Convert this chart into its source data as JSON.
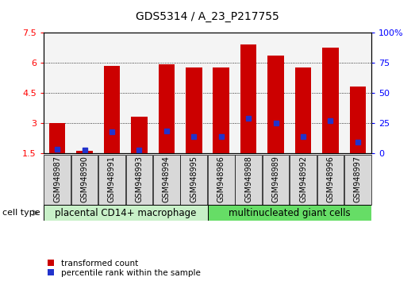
{
  "title": "GDS5314 / A_23_P217755",
  "samples": [
    "GSM948987",
    "GSM948990",
    "GSM948991",
    "GSM948993",
    "GSM948994",
    "GSM948995",
    "GSM948986",
    "GSM948988",
    "GSM948989",
    "GSM948992",
    "GSM948996",
    "GSM948997"
  ],
  "transformed_count": [
    3.0,
    1.62,
    5.85,
    3.3,
    5.92,
    5.75,
    5.75,
    6.9,
    6.35,
    5.75,
    6.75,
    4.8
  ],
  "percentile_rank_pct": [
    3.0,
    2.5,
    18.0,
    2.5,
    18.5,
    14.0,
    14.0,
    29.0,
    25.0,
    14.0,
    27.0,
    9.0
  ],
  "group1_label": "placental CD14+ macrophage",
  "group2_label": "multinucleated giant cells",
  "group1_count": 6,
  "group2_count": 6,
  "bar_color": "#cc0000",
  "percentile_color": "#2233cc",
  "group1_bg": "#c8f0c8",
  "group2_bg": "#66dd66",
  "ylim_left": [
    1.5,
    7.5
  ],
  "ylim_right": [
    0,
    100
  ],
  "yticks_left": [
    1.5,
    3.0,
    4.5,
    6.0,
    7.5
  ],
  "ytick_labels_left": [
    "1.5",
    "3",
    "4.5",
    "6",
    "7.5"
  ],
  "yticks_right": [
    0,
    25,
    50,
    75,
    100
  ],
  "ytick_labels_right": [
    "0",
    "25",
    "50",
    "75",
    "100%"
  ],
  "bar_width": 0.6,
  "cell_type_label": "cell type",
  "legend_tc": "transformed count",
  "legend_pr": "percentile rank within the sample",
  "background_color": "#ffffff",
  "plot_bg": "#f4f4f4",
  "title_fontsize": 10,
  "tick_fontsize": 8,
  "sample_fontsize": 7,
  "group_fontsize": 8.5
}
